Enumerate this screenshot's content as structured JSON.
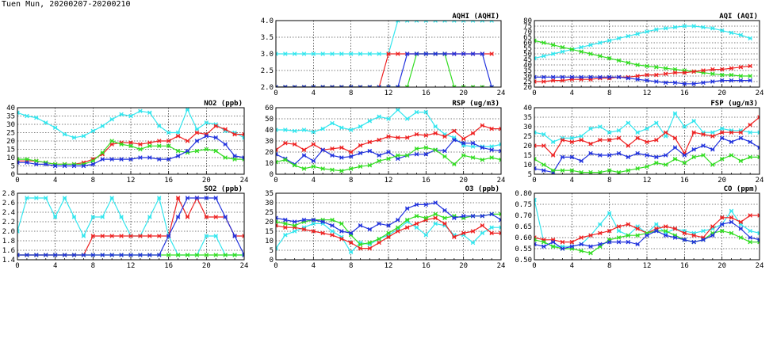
{
  "page_title": "Tuen Mun, 20200207-20200210",
  "colors": {
    "cyan": "#33e6ee",
    "red": "#ee2222",
    "green": "#33dd22",
    "blue": "#2233dd"
  },
  "chart_data": [
    {
      "id": "aqhi",
      "type": "line",
      "title": "AQHI (AQHI)",
      "ylim": [
        2.0,
        4.0
      ],
      "yticks": [
        "2.0",
        "2.5",
        "3.0",
        "3.5",
        "4.0"
      ],
      "xlim": [
        0,
        24
      ],
      "xticks": [
        "0",
        "4",
        "8",
        "12",
        "16",
        "20",
        "24"
      ],
      "grid": true,
      "series": [
        {
          "color": "cyan",
          "values": [
            3,
            3,
            3,
            3,
            3,
            3,
            3,
            3,
            3,
            3,
            3,
            3,
            3,
            4,
            4,
            4,
            4,
            4,
            4,
            4,
            4,
            4,
            4,
            4
          ]
        },
        {
          "color": "red",
          "values": [
            2,
            2,
            2,
            2,
            2,
            2,
            2,
            2,
            2,
            2,
            2,
            2,
            3,
            3,
            3,
            3,
            3,
            3,
            3,
            3,
            3,
            3,
            3,
            3
          ]
        },
        {
          "color": "green",
          "values": [
            2,
            2,
            2,
            2,
            2,
            2,
            2,
            2,
            2,
            2,
            2,
            2,
            2,
            2,
            2,
            3,
            3,
            3,
            3,
            2,
            2,
            2,
            2,
            2
          ]
        },
        {
          "color": "blue",
          "values": [
            2,
            2,
            2,
            2,
            2,
            2,
            2,
            2,
            2,
            2,
            2,
            2,
            2,
            2,
            3,
            3,
            3,
            3,
            3,
            3,
            3,
            3,
            3,
            2
          ]
        }
      ]
    },
    {
      "id": "aqi",
      "type": "line",
      "title": "AQI (AQI)",
      "ylim": [
        20,
        80
      ],
      "yticks": [
        "20",
        "25",
        "30",
        "35",
        "40",
        "45",
        "50",
        "55",
        "60",
        "65",
        "70",
        "75",
        "80"
      ],
      "xlim": [
        0,
        24
      ],
      "xticks": [
        "0",
        "4",
        "8",
        "12",
        "16",
        "20",
        "24"
      ],
      "grid": true,
      "series": [
        {
          "color": "cyan",
          "values": [
            46,
            48,
            50,
            52,
            54,
            56,
            58,
            60,
            62,
            64,
            66,
            68,
            70,
            72,
            73,
            74,
            75,
            75,
            74,
            73,
            71,
            69,
            67,
            64
          ]
        },
        {
          "color": "green",
          "values": [
            62,
            60,
            58,
            56,
            54,
            52,
            50,
            48,
            46,
            44,
            42,
            40,
            39,
            38,
            37,
            36,
            35,
            34,
            33,
            32,
            31,
            31,
            30,
            30
          ]
        },
        {
          "color": "red",
          "values": [
            25,
            25,
            26,
            26,
            27,
            27,
            27,
            28,
            28,
            29,
            29,
            30,
            31,
            31,
            32,
            33,
            33,
            34,
            35,
            36,
            36,
            37,
            38,
            39
          ]
        },
        {
          "color": "blue",
          "values": [
            29,
            29,
            29,
            29,
            29,
            29,
            29,
            29,
            29,
            29,
            28,
            27,
            26,
            25,
            24,
            24,
            23,
            23,
            24,
            25,
            26,
            26,
            26,
            26
          ]
        }
      ]
    },
    {
      "id": "no2",
      "type": "line",
      "title": "NO2 (ppb)",
      "ylim": [
        0,
        40
      ],
      "yticks": [
        "0",
        "5",
        "10",
        "15",
        "20",
        "25",
        "30",
        "35",
        "40"
      ],
      "xlim": [
        0,
        24
      ],
      "xticks": [
        "0",
        "4",
        "8",
        "12",
        "16",
        "20",
        "24"
      ],
      "grid": true,
      "series": [
        {
          "color": "cyan",
          "values": [
            37,
            35,
            34,
            31,
            28,
            24,
            22,
            23,
            26,
            29,
            33,
            36,
            35,
            38,
            37,
            29,
            25,
            25,
            39,
            27,
            31,
            30,
            26,
            25,
            22
          ]
        },
        {
          "color": "red",
          "values": [
            8,
            8,
            8,
            7,
            6,
            6,
            6,
            7,
            9,
            12,
            18,
            19,
            19,
            18,
            19,
            20,
            20,
            23,
            20,
            25,
            24,
            29,
            27,
            24,
            24
          ]
        },
        {
          "color": "green",
          "values": [
            9,
            9,
            8,
            7,
            6,
            6,
            6,
            6,
            8,
            13,
            20,
            18,
            17,
            15,
            17,
            17,
            17,
            14,
            13,
            14,
            15,
            14,
            10,
            9,
            9
          ]
        },
        {
          "color": "blue",
          "values": [
            7,
            7,
            6,
            6,
            5,
            5,
            5,
            5,
            6,
            9,
            9,
            9,
            9,
            10,
            10,
            9,
            9,
            11,
            14,
            20,
            23,
            22,
            18,
            11,
            10
          ]
        }
      ]
    },
    {
      "id": "rsp",
      "type": "line",
      "title": "RSP (ug/m3)",
      "ylim": [
        0,
        60
      ],
      "yticks": [
        "0",
        "10",
        "20",
        "30",
        "40",
        "50",
        "60"
      ],
      "xlim": [
        0,
        24
      ],
      "xticks": [
        "0",
        "4",
        "8",
        "12",
        "16",
        "20",
        "24"
      ],
      "grid": true,
      "series": [
        {
          "color": "cyan",
          "values": [
            40,
            40,
            39,
            40,
            38,
            41,
            46,
            42,
            40,
            43,
            48,
            52,
            50,
            58,
            50,
            56,
            56,
            43,
            36,
            33,
            26,
            25,
            25,
            25,
            27
          ]
        },
        {
          "color": "red",
          "values": [
            22,
            28,
            27,
            22,
            27,
            22,
            23,
            24,
            20,
            26,
            29,
            31,
            34,
            33,
            33,
            36,
            35,
            37,
            34,
            39,
            32,
            37,
            44,
            41,
            41
          ]
        },
        {
          "color": "blue",
          "values": [
            18,
            14,
            9,
            17,
            12,
            22,
            17,
            15,
            16,
            19,
            21,
            17,
            20,
            14,
            17,
            18,
            18,
            22,
            21,
            31,
            28,
            28,
            24,
            22,
            21
          ]
        },
        {
          "color": "green",
          "values": [
            11,
            13,
            8,
            5,
            7,
            5,
            4,
            3,
            5,
            7,
            8,
            12,
            14,
            17,
            17,
            23,
            24,
            22,
            16,
            9,
            17,
            15,
            13,
            15,
            13
          ]
        }
      ]
    },
    {
      "id": "fsp",
      "type": "line",
      "title": "FSP (ug/m3)",
      "ylim": [
        5,
        40
      ],
      "yticks": [
        "5",
        "10",
        "15",
        "20",
        "25",
        "30",
        "35",
        "40"
      ],
      "xlim": [
        0,
        24
      ],
      "xticks": [
        "0",
        "4",
        "8",
        "12",
        "16",
        "20",
        "24"
      ],
      "grid": true,
      "series": [
        {
          "color": "cyan",
          "values": [
            27,
            26,
            22,
            24,
            24,
            25,
            29,
            30,
            27,
            28,
            32,
            27,
            29,
            32,
            25,
            37,
            30,
            33,
            27,
            27,
            29,
            28,
            28,
            27,
            27
          ]
        },
        {
          "color": "red",
          "values": [
            20,
            20,
            15,
            23,
            22,
            23,
            21,
            23,
            23,
            24,
            20,
            24,
            22,
            23,
            27,
            24,
            16,
            27,
            26,
            25,
            27,
            27,
            27,
            31,
            35
          ]
        },
        {
          "color": "blue",
          "values": [
            8,
            7,
            6,
            14,
            14,
            12,
            16,
            15,
            15,
            16,
            14,
            16,
            15,
            14,
            15,
            19,
            15,
            18,
            20,
            18,
            24,
            22,
            24,
            22,
            19
          ]
        },
        {
          "color": "green",
          "values": [
            13,
            10,
            7,
            7,
            7,
            6,
            6,
            6,
            7,
            6,
            7,
            8,
            9,
            11,
            10,
            13,
            11,
            14,
            15,
            10,
            13,
            15,
            12,
            14,
            14
          ]
        }
      ]
    },
    {
      "id": "so2",
      "type": "line",
      "title": "SO2 (ppb)",
      "ylim": [
        1.4,
        2.8
      ],
      "yticks": [
        "1.4",
        "1.6",
        "1.8",
        "2.0",
        "2.2",
        "2.4",
        "2.6",
        "2.8"
      ],
      "xlim": [
        0,
        24
      ],
      "xticks": [
        "0",
        "4",
        "8",
        "12",
        "16",
        "20",
        "24"
      ],
      "grid": true,
      "series": [
        {
          "color": "cyan",
          "values": [
            2.0,
            2.7,
            2.7,
            2.7,
            2.3,
            2.7,
            2.3,
            1.9,
            2.3,
            2.3,
            2.7,
            2.3,
            1.9,
            1.9,
            2.3,
            2.7,
            1.9,
            1.5,
            1.5,
            1.5,
            1.9,
            1.9,
            1.5,
            1.5,
            1.5
          ]
        },
        {
          "color": "red",
          "values": [
            1.5,
            1.5,
            1.5,
            1.5,
            1.5,
            1.5,
            1.5,
            1.5,
            1.9,
            1.9,
            1.9,
            1.9,
            1.9,
            1.9,
            1.9,
            1.9,
            1.9,
            2.7,
            2.3,
            2.7,
            2.3,
            2.3,
            2.3,
            1.9,
            1.9
          ]
        },
        {
          "color": "green",
          "values": [
            1.5,
            1.5,
            1.5,
            1.5,
            1.5,
            1.5,
            1.5,
            1.5,
            1.5,
            1.5,
            1.5,
            1.5,
            1.5,
            1.5,
            1.5,
            1.5,
            1.5,
            1.5,
            1.5,
            1.5,
            1.5,
            1.5,
            1.5,
            1.5,
            1.5
          ]
        },
        {
          "color": "blue",
          "values": [
            1.5,
            1.5,
            1.5,
            1.5,
            1.5,
            1.5,
            1.5,
            1.5,
            1.5,
            1.5,
            1.5,
            1.5,
            1.5,
            1.5,
            1.5,
            1.5,
            1.9,
            2.3,
            2.7,
            2.7,
            2.7,
            2.7,
            2.3,
            1.9,
            1.5
          ]
        }
      ]
    },
    {
      "id": "o3",
      "type": "line",
      "title": "O3 (ppb)",
      "ylim": [
        0,
        35
      ],
      "yticks": [
        "0",
        "5",
        "10",
        "15",
        "20",
        "25",
        "30",
        "35"
      ],
      "xlim": [
        0,
        24
      ],
      "xticks": [
        "0",
        "4",
        "8",
        "12",
        "16",
        "20",
        "24"
      ],
      "grid": true,
      "series": [
        {
          "color": "cyan",
          "values": [
            6,
            13,
            15,
            17,
            19,
            19,
            15,
            12,
            4,
            9,
            8,
            11,
            13,
            16,
            20,
            17,
            13,
            19,
            18,
            13,
            13,
            9,
            14,
            17,
            17
          ]
        },
        {
          "color": "red",
          "values": [
            18,
            17,
            17,
            16,
            15,
            14,
            13,
            11,
            9,
            6,
            6,
            9,
            12,
            15,
            17,
            19,
            21,
            22,
            19,
            12,
            14,
            15,
            18,
            14,
            14
          ]
        },
        {
          "color": "green",
          "values": [
            20,
            19,
            18,
            20,
            21,
            21,
            21,
            19,
            13,
            8,
            9,
            11,
            14,
            17,
            21,
            23,
            22,
            24,
            22,
            23,
            22,
            23,
            23,
            24,
            24
          ]
        },
        {
          "color": "blue",
          "values": [
            22,
            21,
            20,
            21,
            21,
            20,
            18,
            15,
            14,
            18,
            16,
            19,
            18,
            21,
            27,
            29,
            29,
            30,
            26,
            22,
            23,
            23,
            23,
            24,
            21
          ]
        }
      ]
    },
    {
      "id": "co",
      "type": "line",
      "title": "CO (ppm)",
      "ylim": [
        0.5,
        0.8
      ],
      "yticks": [
        "0.50",
        "0.55",
        "0.60",
        "0.65",
        "0.70",
        "0.75",
        "0.80"
      ],
      "xlim": [
        0,
        24
      ],
      "xticks": [
        "0",
        "4",
        "8",
        "12",
        "16",
        "20",
        "24"
      ],
      "grid": true,
      "series": [
        {
          "color": "cyan",
          "values": [
            0.77,
            0.58,
            0.56,
            0.56,
            0.56,
            0.57,
            0.61,
            0.66,
            0.71,
            0.63,
            0.61,
            0.65,
            0.62,
            0.66,
            0.62,
            0.64,
            0.63,
            0.62,
            0.63,
            0.64,
            0.66,
            0.72,
            0.66,
            0.63,
            0.62
          ]
        },
        {
          "color": "red",
          "values": [
            0.6,
            0.59,
            0.59,
            0.58,
            0.58,
            0.6,
            0.61,
            0.62,
            0.63,
            0.65,
            0.66,
            0.64,
            0.62,
            0.64,
            0.65,
            0.64,
            0.62,
            0.61,
            0.6,
            0.65,
            0.69,
            0.69,
            0.67,
            0.7,
            0.7
          ]
        },
        {
          "color": "green",
          "values": [
            0.59,
            0.58,
            0.56,
            0.55,
            0.55,
            0.54,
            0.53,
            0.56,
            0.59,
            0.6,
            0.61,
            0.61,
            0.62,
            0.63,
            0.63,
            0.61,
            0.59,
            0.58,
            0.59,
            0.62,
            0.63,
            0.62,
            0.6,
            0.58,
            0.58
          ]
        },
        {
          "color": "blue",
          "values": [
            0.57,
            0.56,
            0.58,
            0.55,
            0.56,
            0.57,
            0.56,
            0.57,
            0.58,
            0.58,
            0.58,
            0.57,
            0.61,
            0.63,
            0.61,
            0.6,
            0.59,
            0.58,
            0.59,
            0.61,
            0.66,
            0.67,
            0.64,
            0.6,
            0.59
          ]
        }
      ]
    }
  ]
}
